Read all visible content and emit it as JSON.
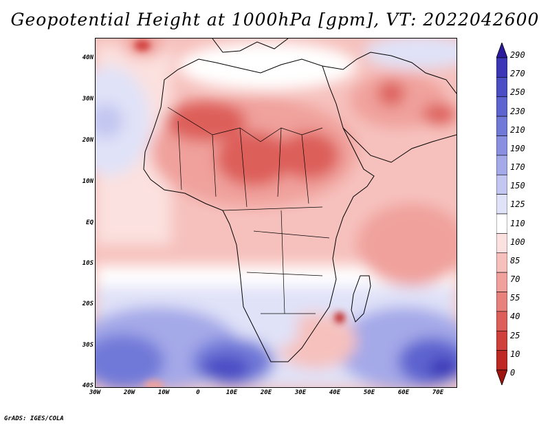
{
  "title": "Geopotential Height at 1000hPa [gpm], VT: 2022042600",
  "credit": "GrADS: IGES/COLA",
  "lat_labels": [
    "40N",
    "30N",
    "20N",
    "10N",
    "EQ",
    "10S",
    "20S",
    "30S",
    "40S"
  ],
  "lon_labels": [
    "30W",
    "20W",
    "10W",
    "0",
    "10E",
    "20E",
    "30E",
    "40E",
    "50E",
    "60E",
    "70E"
  ],
  "colorbar": {
    "labels": [
      "290",
      "270",
      "250",
      "230",
      "210",
      "190",
      "170",
      "150",
      "125",
      "110",
      "100",
      "85",
      "70",
      "55",
      "40",
      "25",
      "10",
      "0"
    ],
    "colors": [
      "#2a1b9c",
      "#3a36b5",
      "#4b4dc4",
      "#5d63cf",
      "#7179d8",
      "#8a90e0",
      "#a4a9e8",
      "#c3c6f0",
      "#e0e2f8",
      "#ffffff",
      "#fbe1df",
      "#f6c1bd",
      "#f0a19c",
      "#e8807b",
      "#dd5f5a",
      "#cf403c",
      "#bd2824",
      "#a01410"
    ]
  }
}
